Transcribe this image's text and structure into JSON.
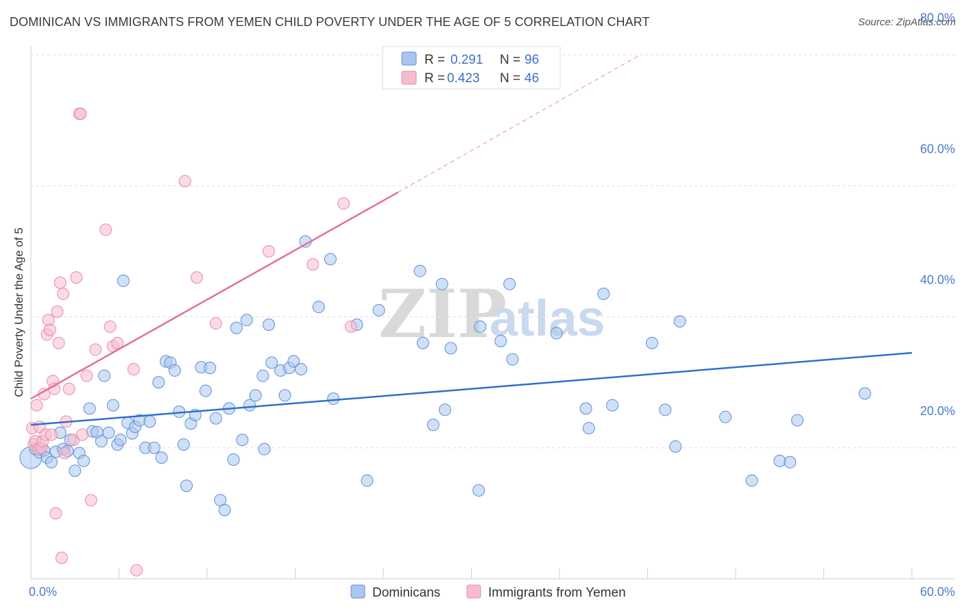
{
  "title": "DOMINICAN VS IMMIGRANTS FROM YEMEN CHILD POVERTY UNDER THE AGE OF 5 CORRELATION CHART",
  "source": "Source: ZipAtlas.com",
  "watermark": {
    "zip": "ZIP",
    "atlas": "atlas"
  },
  "colors": {
    "blue_fill": "#a9c6ee",
    "blue_stroke": "#5b8fd6",
    "blue_line": "#2f6fce",
    "pink_fill": "#f6bccd",
    "pink_stroke": "#e88aa6",
    "pink_line": "#e36f97",
    "axis_text": "#4a7cc8",
    "grid": "#dddddd"
  },
  "chart_data": {
    "type": "scatter",
    "title": "DOMINICAN VS IMMIGRANTS FROM YEMEN CHILD POVERTY UNDER THE AGE OF 5 CORRELATION CHART",
    "xlabel": "",
    "ylabel": "Child Poverty Under the Age of 5",
    "xlim": [
      0,
      60
    ],
    "ylim": [
      0,
      80
    ],
    "x_tick_labels": [
      "0.0%",
      "60.0%"
    ],
    "y_ticks": [
      20,
      40,
      60,
      80
    ],
    "y_tick_labels": [
      "20.0%",
      "40.0%",
      "60.0%",
      "80.0%"
    ],
    "grid": true,
    "legend": {
      "placement": "top-center",
      "rows": [
        {
          "r_label": "R = ",
          "r_value": "0.291",
          "n_label": "N = ",
          "n_value": "96"
        },
        {
          "r_label": "R = ",
          "r_value": "0.423",
          "n_label": "N = ",
          "n_value": "46"
        }
      ]
    },
    "bottom_legend": [
      "Dominicans",
      "Immigrants from Yemen"
    ],
    "series": [
      {
        "name": "Dominicans",
        "trend": {
          "x": [
            0,
            60
          ],
          "y": [
            23.5,
            34.5
          ]
        },
        "points": [
          [
            0.0,
            18.5
          ],
          [
            0.3,
            19.8
          ],
          [
            0.6,
            19.3
          ],
          [
            0.9,
            19.6
          ],
          [
            1.1,
            18.5
          ],
          [
            1.4,
            17.8
          ],
          [
            1.7,
            19.4
          ],
          [
            2.0,
            22.3
          ],
          [
            2.2,
            19.8
          ],
          [
            2.5,
            19.5
          ],
          [
            2.7,
            21.2
          ],
          [
            3.0,
            16.5
          ],
          [
            3.3,
            19.2
          ],
          [
            3.6,
            18.0
          ],
          [
            4.0,
            26.0
          ],
          [
            4.2,
            22.5
          ],
          [
            4.5,
            22.4
          ],
          [
            4.8,
            21.0
          ],
          [
            5.0,
            31.0
          ],
          [
            5.3,
            22.3
          ],
          [
            5.6,
            26.5
          ],
          [
            5.9,
            20.5
          ],
          [
            6.1,
            21.2
          ],
          [
            6.3,
            45.5
          ],
          [
            6.6,
            23.8
          ],
          [
            6.9,
            22.2
          ],
          [
            7.1,
            23.2
          ],
          [
            7.4,
            24.2
          ],
          [
            7.8,
            20.0
          ],
          [
            8.1,
            24.0
          ],
          [
            8.4,
            20.0
          ],
          [
            8.7,
            30.0
          ],
          [
            8.9,
            18.5
          ],
          [
            9.2,
            33.2
          ],
          [
            9.5,
            33.0
          ],
          [
            9.8,
            31.8
          ],
          [
            10.1,
            25.5
          ],
          [
            10.4,
            20.5
          ],
          [
            10.6,
            14.2
          ],
          [
            10.9,
            23.7
          ],
          [
            11.2,
            25.0
          ],
          [
            11.6,
            32.3
          ],
          [
            11.9,
            28.7
          ],
          [
            12.2,
            32.2
          ],
          [
            12.6,
            24.5
          ],
          [
            12.9,
            12.0
          ],
          [
            13.2,
            10.5
          ],
          [
            13.5,
            26.0
          ],
          [
            13.8,
            18.2
          ],
          [
            14.0,
            38.3
          ],
          [
            14.4,
            21.2
          ],
          [
            14.7,
            39.5
          ],
          [
            14.9,
            26.5
          ],
          [
            15.3,
            28.0
          ],
          [
            15.8,
            31.0
          ],
          [
            15.9,
            19.8
          ],
          [
            16.2,
            38.8
          ],
          [
            16.4,
            33.0
          ],
          [
            17.0,
            31.8
          ],
          [
            17.3,
            28.0
          ],
          [
            17.6,
            32.2
          ],
          [
            17.9,
            33.2
          ],
          [
            18.4,
            32.0
          ],
          [
            18.7,
            51.5
          ],
          [
            19.6,
            41.5
          ],
          [
            20.4,
            48.8
          ],
          [
            20.6,
            27.5
          ],
          [
            22.2,
            38.8
          ],
          [
            22.9,
            15.0
          ],
          [
            23.7,
            41.0
          ],
          [
            26.5,
            47.0
          ],
          [
            26.7,
            36.0
          ],
          [
            27.4,
            23.5
          ],
          [
            28.0,
            45.0
          ],
          [
            28.2,
            25.8
          ],
          [
            28.6,
            35.2
          ],
          [
            30.5,
            13.5
          ],
          [
            30.6,
            38.5
          ],
          [
            32.0,
            36.3
          ],
          [
            32.6,
            45.0
          ],
          [
            32.8,
            33.5
          ],
          [
            35.8,
            37.5
          ],
          [
            37.8,
            26.0
          ],
          [
            38.0,
            23.0
          ],
          [
            39.0,
            43.5
          ],
          [
            39.6,
            26.5
          ],
          [
            42.3,
            36.0
          ],
          [
            43.2,
            25.8
          ],
          [
            43.9,
            20.2
          ],
          [
            44.2,
            39.3
          ],
          [
            47.3,
            24.7
          ],
          [
            49.1,
            15.0
          ],
          [
            51.0,
            18.0
          ],
          [
            51.7,
            17.8
          ],
          [
            52.2,
            24.2
          ],
          [
            56.8,
            28.3
          ]
        ]
      },
      {
        "name": "Immigrants from Yemen",
        "trend": {
          "x": [
            0,
            25
          ],
          "y": [
            27.5,
            59
          ]
        },
        "trend_ext": {
          "x": [
            25,
            41.5
          ],
          "y": [
            59,
            80
          ]
        },
        "points": [
          [
            0.1,
            23.0
          ],
          [
            0.2,
            20.5
          ],
          [
            0.3,
            21.0
          ],
          [
            0.4,
            26.5
          ],
          [
            0.5,
            19.8
          ],
          [
            0.6,
            23.2
          ],
          [
            0.7,
            20.0
          ],
          [
            0.8,
            21.0
          ],
          [
            0.9,
            28.2
          ],
          [
            1.0,
            22.0
          ],
          [
            1.1,
            37.3
          ],
          [
            1.2,
            39.5
          ],
          [
            1.3,
            38.0
          ],
          [
            1.4,
            22.0
          ],
          [
            1.5,
            30.2
          ],
          [
            1.6,
            29.0
          ],
          [
            1.7,
            10.0
          ],
          [
            1.8,
            40.8
          ],
          [
            1.9,
            36.0
          ],
          [
            2.0,
            45.2
          ],
          [
            2.1,
            3.2
          ],
          [
            2.2,
            43.5
          ],
          [
            2.3,
            19.2
          ],
          [
            2.4,
            24.0
          ],
          [
            2.6,
            29.0
          ],
          [
            2.9,
            21.2
          ],
          [
            3.1,
            46.0
          ],
          [
            3.3,
            71.0
          ],
          [
            3.4,
            71.0
          ],
          [
            3.5,
            22.0
          ],
          [
            3.8,
            31.0
          ],
          [
            4.1,
            12.0
          ],
          [
            4.4,
            35.0
          ],
          [
            5.1,
            53.3
          ],
          [
            5.4,
            38.5
          ],
          [
            5.6,
            35.5
          ],
          [
            5.9,
            36.0
          ],
          [
            7.0,
            32.0
          ],
          [
            7.2,
            1.3
          ],
          [
            10.5,
            60.7
          ],
          [
            11.3,
            46.0
          ],
          [
            12.6,
            39.0
          ],
          [
            16.2,
            50.0
          ],
          [
            19.2,
            48.0
          ],
          [
            21.3,
            57.3
          ],
          [
            21.8,
            38.5
          ]
        ]
      }
    ]
  }
}
